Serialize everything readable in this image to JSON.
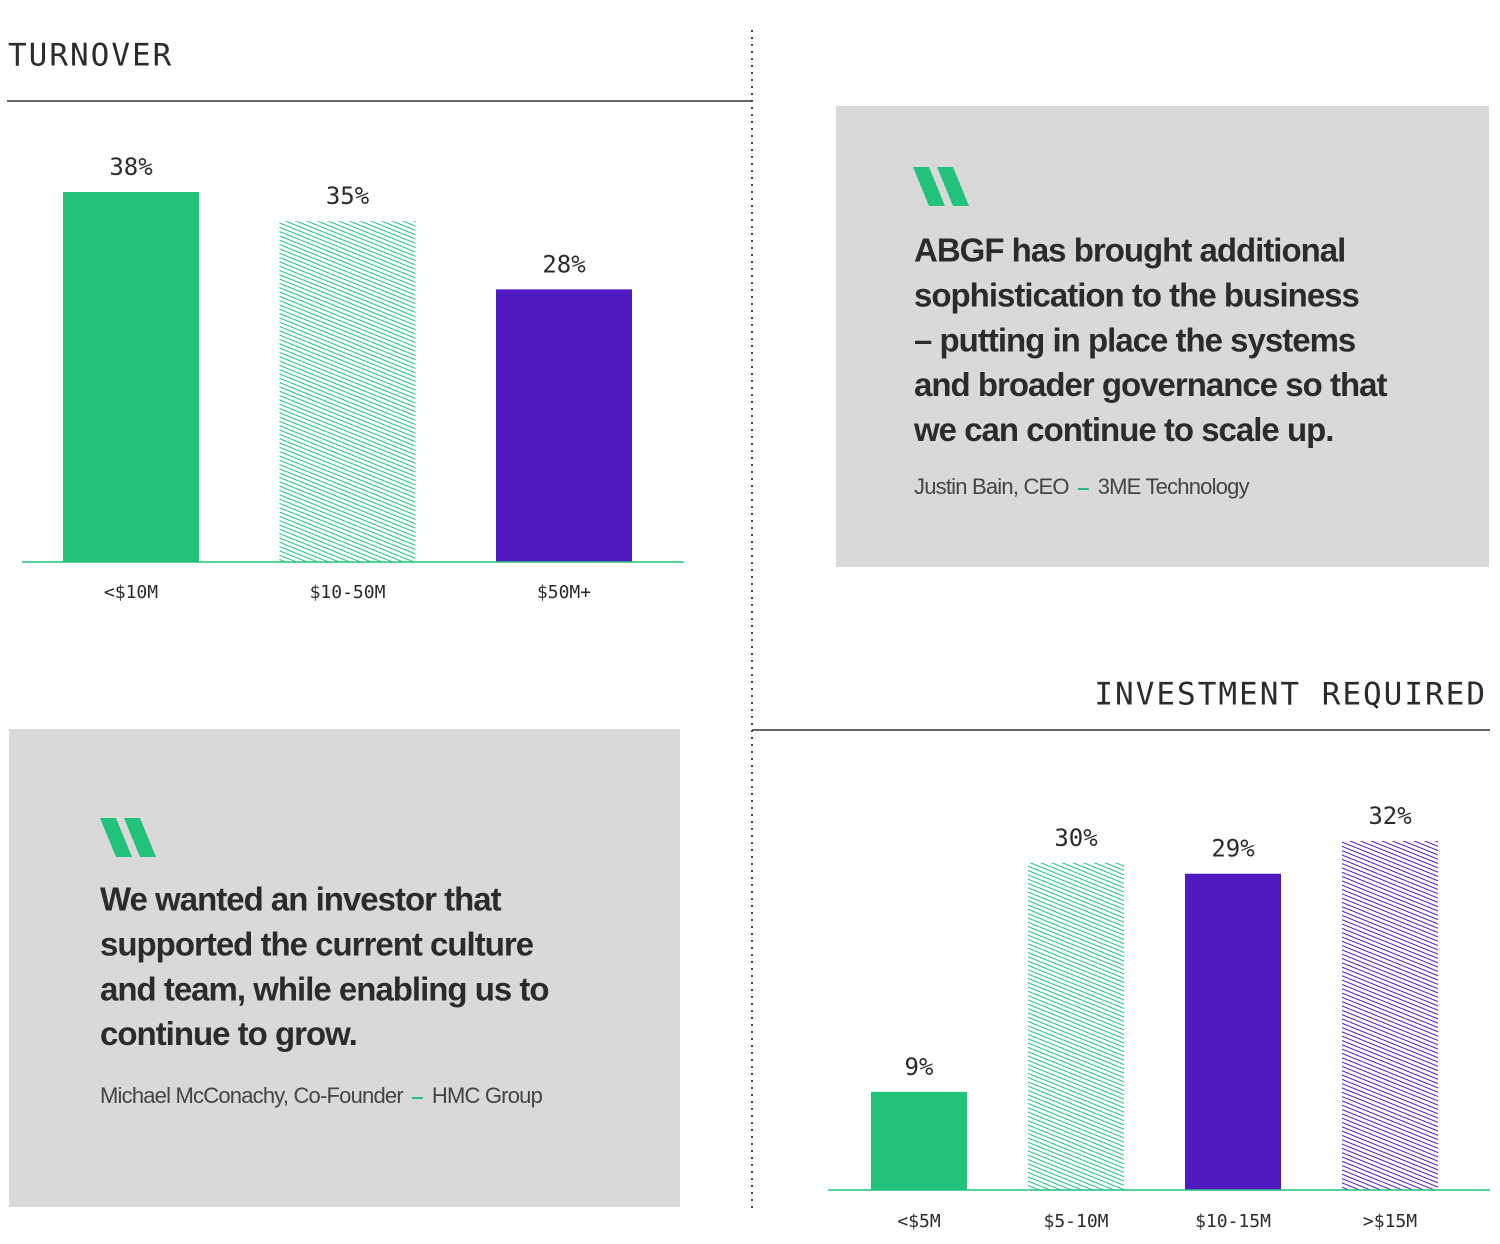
{
  "chart_data": [
    {
      "type": "bar",
      "title": "TURNOVER",
      "categories": [
        "<$10M",
        "$10-50M",
        "$50M+"
      ],
      "values": [
        38,
        35,
        28
      ],
      "value_labels": [
        "38%",
        "35%",
        "28%"
      ],
      "colors": [
        "#22c27a",
        "#22c27a",
        "#5019c2"
      ],
      "hatched": [
        false,
        true,
        false
      ]
    },
    {
      "type": "bar",
      "title": "INVESTMENT REQUIRED",
      "categories": [
        "<$5M",
        "$5-10M",
        "$10-15M",
        ">$15M"
      ],
      "values": [
        9,
        30,
        29,
        32
      ],
      "value_labels": [
        "9%",
        "30%",
        "29%",
        "32%"
      ],
      "colors": [
        "#22c27a",
        "#22c27a",
        "#5019c2",
        "#5019c2"
      ],
      "hatched": [
        false,
        true,
        false,
        true
      ]
    }
  ],
  "quotes": [
    {
      "lines": [
        "ABGF has brought additional",
        "sophistication to the business",
        "– putting in place the systems",
        "and broader governance so that",
        "we can continue to scale up."
      ],
      "author": "Justin Bain, CEO",
      "company": "3ME Technology"
    },
    {
      "lines": [
        "We wanted an investor that",
        "supported the current culture",
        "and team, while enabling us to",
        "continue to grow."
      ],
      "author": "Michael McConachy, Co-Founder",
      "company": "HMC Group"
    }
  ]
}
